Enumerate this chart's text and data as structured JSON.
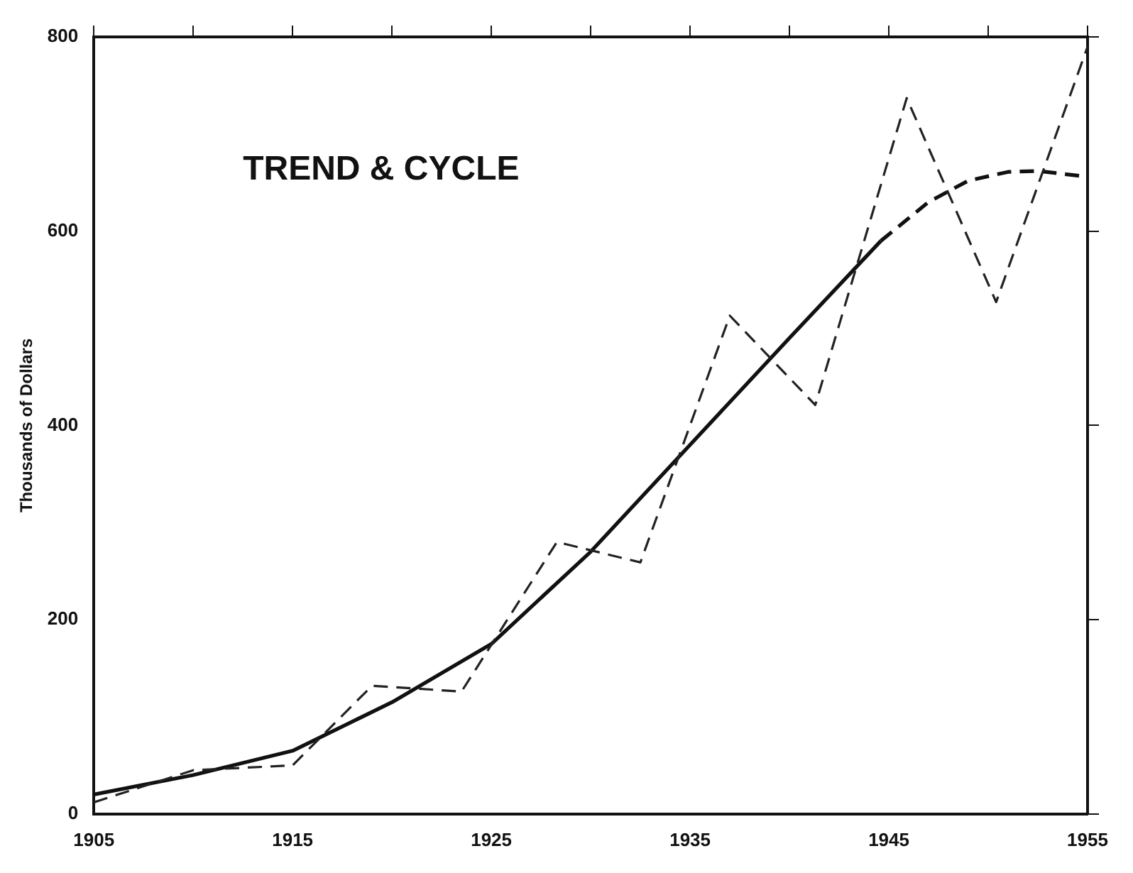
{
  "chart_data": {
    "type": "line",
    "title": "TREND & CYCLE",
    "ylabel": "Thousands of Dollars",
    "xlim": [
      1905,
      1955
    ],
    "ylim": [
      0,
      800
    ],
    "xticks": [
      1905,
      {
        "value": 1910,
        "label": null
      },
      1915,
      {
        "value": 1920,
        "label": null
      },
      1925,
      {
        "value": 1930,
        "label": null
      },
      1935,
      {
        "value": 1940,
        "label": null
      },
      1945,
      {
        "value": 1950,
        "label": null
      },
      1955
    ],
    "yticks": [
      0,
      200,
      400,
      600,
      800
    ],
    "grid": false,
    "legend": false,
    "marker": "none",
    "series": [
      {
        "color": "#222222",
        "line_style": "dashed",
        "x": [
          1905,
          1910,
          1915,
          1919,
          1923.5,
          1928.3,
          1932.5,
          1937,
          1941.3,
          1945.9,
          1950.4,
          1955
        ],
        "values": [
          12,
          45,
          50,
          132,
          126,
          280,
          259,
          513,
          421,
          737,
          527,
          790
        ]
      },
      {
        "color": "#111111",
        "line_style": "solid",
        "x": [
          1905,
          1910,
          1915,
          1920,
          1925,
          1930,
          1935,
          1940,
          1944.6
        ],
        "values": [
          20,
          40,
          65,
          115,
          175,
          270,
          380,
          490,
          590
        ]
      },
      {
        "color": "#111111",
        "line_style": "dashed",
        "x": [
          1944.6,
          1947,
          1949,
          1951,
          1952.5,
          1955
        ],
        "values": [
          590,
          630,
          652,
          661,
          662,
          656
        ]
      }
    ]
  }
}
